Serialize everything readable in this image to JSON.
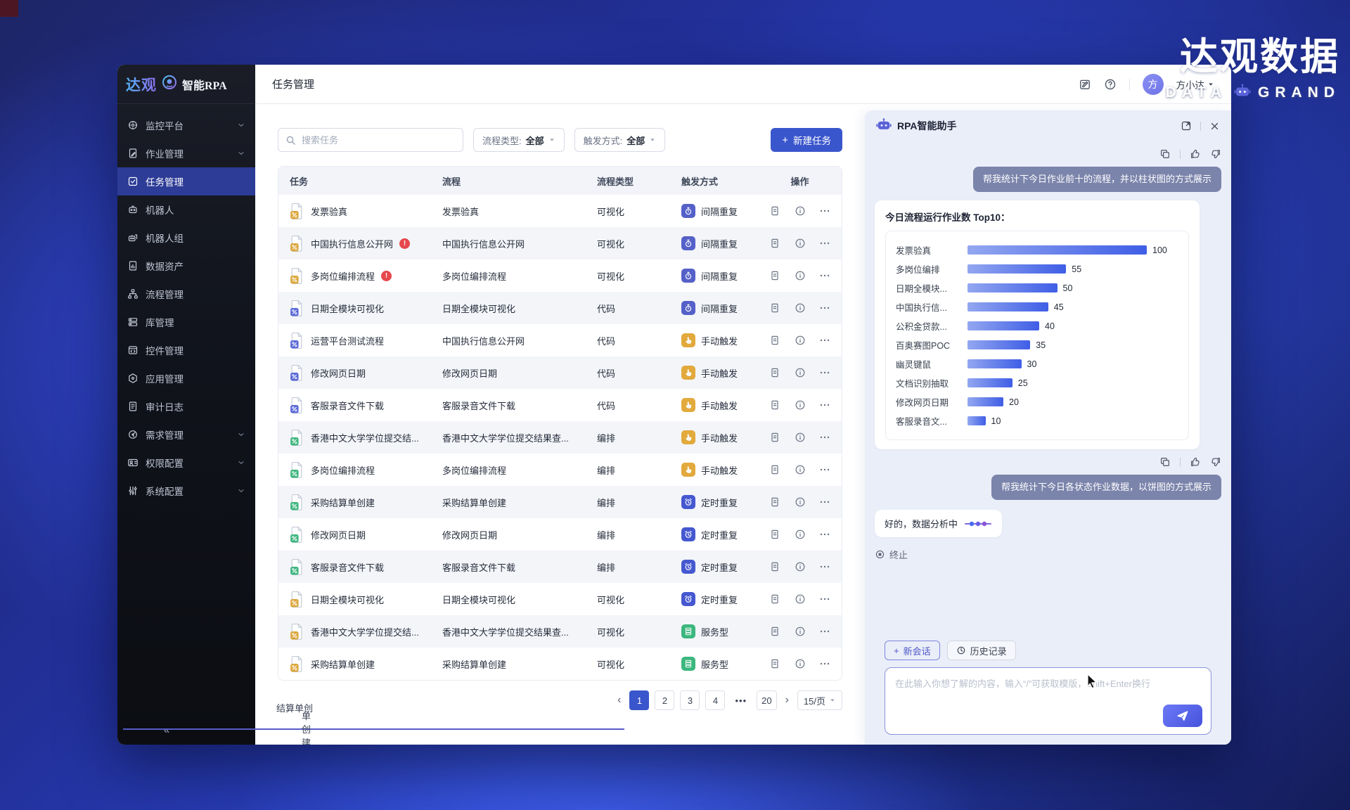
{
  "watermark": {
    "title_cn": "达观数据",
    "en_left": "DATA",
    "en_right": "GRAND"
  },
  "window": {
    "logo": {
      "brand": "达观",
      "product": "智能RPA"
    },
    "header": {
      "title": "任务管理",
      "user_name": "方小达",
      "avatar_text": "方"
    },
    "sidebar": {
      "items": [
        {
          "label": "监控平台",
          "icon": "monitor",
          "chevron": true
        },
        {
          "label": "作业管理",
          "icon": "jobs",
          "chevron": true
        },
        {
          "label": "任务管理",
          "icon": "tasks",
          "selected": true
        },
        {
          "label": "机器人",
          "icon": "robot"
        },
        {
          "label": "机器人组",
          "icon": "robot-group"
        },
        {
          "label": "数据资产",
          "icon": "data"
        },
        {
          "label": "流程管理",
          "icon": "flow"
        },
        {
          "label": "库管理",
          "icon": "library"
        },
        {
          "label": "控件管理",
          "icon": "widget"
        },
        {
          "label": "应用管理",
          "icon": "app"
        },
        {
          "label": "审计日志",
          "icon": "audit"
        },
        {
          "label": "需求管理",
          "icon": "demand",
          "chevron": true
        },
        {
          "label": "权限配置",
          "icon": "permission",
          "chevron": true
        },
        {
          "label": "系统配置",
          "icon": "system",
          "chevron": true
        }
      ]
    },
    "toolbar": {
      "search_placeholder": "搜索任务",
      "filters": [
        {
          "label": "流程类型:",
          "value": "全部"
        },
        {
          "label": "触发方式:",
          "value": "全部"
        }
      ],
      "new_task_label": "新建任务"
    },
    "table": {
      "columns": [
        "任务",
        "流程",
        "流程类型",
        "触发方式",
        "操作"
      ],
      "rows": [
        {
          "task": "发票验真",
          "alert": false,
          "icon": "yellow",
          "flow": "发票验真",
          "type": "可视化",
          "trigger": "间隔重复",
          "trigger_kind": "interval"
        },
        {
          "task": "中国执行信息公开网",
          "alert": true,
          "icon": "yellow",
          "flow": "中国执行信息公开网",
          "type": "可视化",
          "trigger": "间隔重复",
          "trigger_kind": "interval"
        },
        {
          "task": "多岗位编排流程",
          "alert": true,
          "icon": "yellow",
          "flow": "多岗位编排流程",
          "type": "可视化",
          "trigger": "间隔重复",
          "trigger_kind": "interval"
        },
        {
          "task": "日期全模块可视化",
          "alert": false,
          "icon": "purple",
          "flow": "日期全模块可视化",
          "type": "代码",
          "trigger": "间隔重复",
          "trigger_kind": "interval"
        },
        {
          "task": "运营平台测试流程",
          "alert": false,
          "icon": "purple",
          "flow": "中国执行信息公开网",
          "type": "代码",
          "trigger": "手动触发",
          "trigger_kind": "manual"
        },
        {
          "task": "修改网页日期",
          "alert": false,
          "icon": "purple",
          "flow": "修改网页日期",
          "type": "代码",
          "trigger": "手动触发",
          "trigger_kind": "manual"
        },
        {
          "task": "客服录音文件下载",
          "alert": false,
          "icon": "purple",
          "flow": "客服录音文件下载",
          "type": "代码",
          "trigger": "手动触发",
          "trigger_kind": "manual"
        },
        {
          "task": "香港中文大学学位提交结...",
          "alert": false,
          "icon": "green",
          "flow": "香港中文大学学位提交结果查...",
          "type": "编排",
          "trigger": "手动触发",
          "trigger_kind": "manual"
        },
        {
          "task": "多岗位编排流程",
          "alert": false,
          "icon": "green",
          "flow": "多岗位编排流程",
          "type": "编排",
          "trigger": "手动触发",
          "trigger_kind": "manual"
        },
        {
          "task": "采购结算单创建",
          "alert": false,
          "icon": "green",
          "flow": "采购结算单创建",
          "type": "编排",
          "trigger": "定时重复",
          "trigger_kind": "timer"
        },
        {
          "task": "修改网页日期",
          "alert": false,
          "icon": "green",
          "flow": "修改网页日期",
          "type": "编排",
          "trigger": "定时重复",
          "trigger_kind": "timer"
        },
        {
          "task": "客服录音文件下载",
          "alert": false,
          "icon": "green",
          "flow": "客服录音文件下载",
          "type": "编排",
          "trigger": "定时重复",
          "trigger_kind": "timer"
        },
        {
          "task": "日期全模块可视化",
          "alert": false,
          "icon": "yellow",
          "flow": "日期全模块可视化",
          "type": "可视化",
          "trigger": "定时重复",
          "trigger_kind": "timer"
        },
        {
          "task": "香港中文大学学位提交结...",
          "alert": false,
          "icon": "yellow",
          "flow": "香港中文大学学位提交结果查...",
          "type": "可视化",
          "trigger": "服务型",
          "trigger_kind": "service"
        },
        {
          "task": "采购结算单创建",
          "alert": false,
          "icon": "yellow",
          "flow": "采购结算单创建",
          "type": "可视化",
          "trigger": "服务型",
          "trigger_kind": "service"
        }
      ]
    },
    "pagination": {
      "pages": [
        "1",
        "2",
        "3",
        "4",
        "…",
        "20"
      ],
      "active": "1",
      "size": "15/页"
    },
    "drag_ghost": {
      "line1": "结算单创",
      "line2": "单创建"
    },
    "assistant": {
      "title": "RPA智能助手",
      "user_msg_1": "帮我统计下今日作业前十的流程，并以柱状图的方式展示",
      "user_msg_2": "帮我统计下今日各状态作业数据，以饼图的方式展示",
      "ai_msg": "好的，数据分析中",
      "stop_label": "终止",
      "new_chat_label": "新会话",
      "history_label": "历史记录",
      "input_placeholder": "在此输入你想了解的内容，输入“/”可获取模版，Shift+Enter换行"
    }
  },
  "chart_data": {
    "type": "bar",
    "orientation": "horizontal",
    "title": "今日流程运行作业数 Top10：",
    "categories": [
      "发票验真",
      "多岗位编排",
      "日期全模块...",
      "中国执行信...",
      "公积金贷款...",
      "百奥赛图POC",
      "幽灵键鼠",
      "文档识别抽取",
      "修改网页日期",
      "客服录音文..."
    ],
    "values": [
      100,
      55,
      50,
      45,
      40,
      35,
      30,
      25,
      20,
      10
    ],
    "xlim": [
      0,
      100
    ],
    "value_labels": true,
    "legend": false,
    "grid": false
  }
}
